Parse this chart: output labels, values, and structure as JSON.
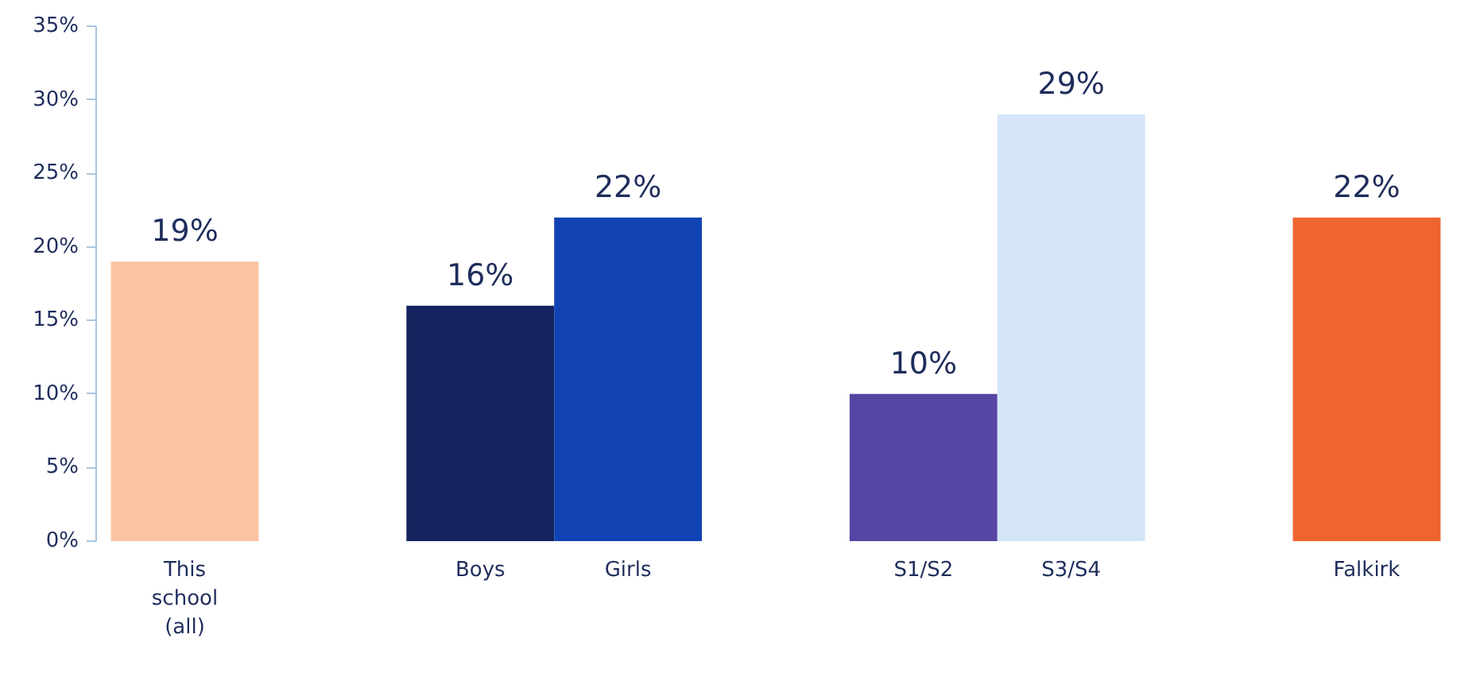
{
  "chart_data": {
    "type": "bar",
    "categories": [
      "This school (all)",
      null,
      "Boys",
      "Girls",
      null,
      "S1/S2",
      "S3/S4",
      null,
      "Falkirk"
    ],
    "values": [
      19,
      null,
      16,
      22,
      null,
      10,
      29,
      null,
      22
    ],
    "colors": [
      "#fbc4a2",
      null,
      "#14245e",
      "#1243b5",
      null,
      "#5645a3",
      "#d4e6f8",
      null,
      "#f0652f"
    ],
    "value_labels": [
      "19%",
      null,
      "16%",
      "22%",
      null,
      "10%",
      "29%",
      null,
      "22%"
    ],
    "ylim": [
      0,
      35
    ],
    "yticks": [
      {
        "value": 0,
        "label": "0%"
      },
      {
        "value": 5,
        "label": "5%"
      },
      {
        "value": 10,
        "label": "10%"
      },
      {
        "value": 15,
        "label": "15%"
      },
      {
        "value": 20,
        "label": "20%"
      },
      {
        "value": 25,
        "label": "25%"
      },
      {
        "value": 30,
        "label": "30%"
      },
      {
        "value": 35,
        "label": "35%"
      }
    ],
    "grid": false
  }
}
